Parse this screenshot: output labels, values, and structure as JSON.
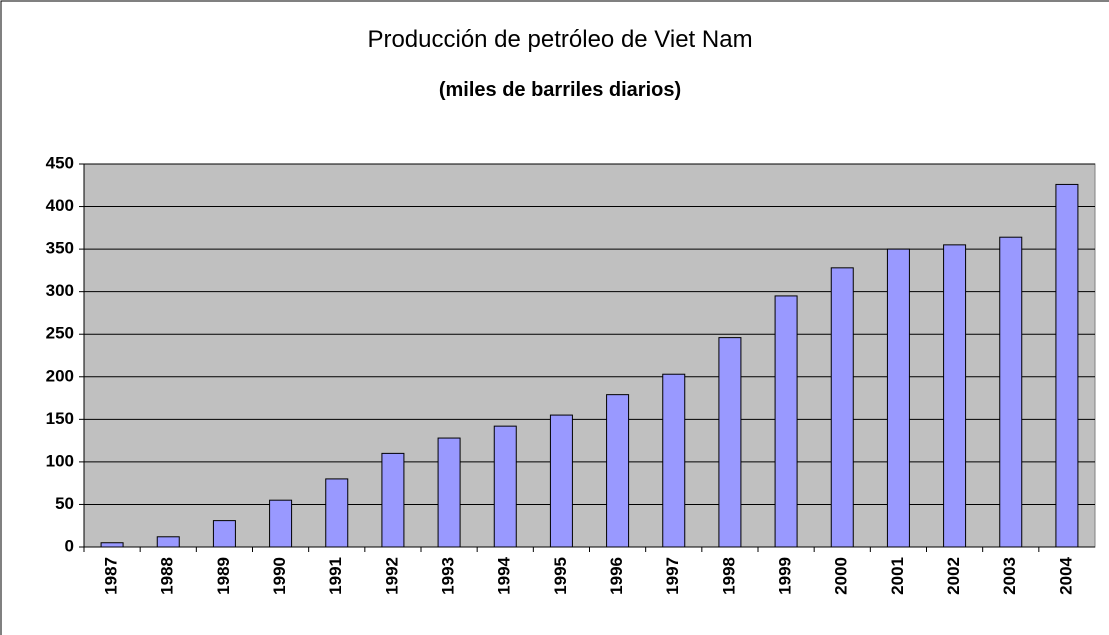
{
  "chart_data": {
    "type": "bar",
    "title": "Producción de petróleo de Viet Nam",
    "subtitle": "(miles de barriles diarios)",
    "categories": [
      "1987",
      "1988",
      "1989",
      "1990",
      "1991",
      "1992",
      "1993",
      "1994",
      "1995",
      "1996",
      "1997",
      "1998",
      "1999",
      "2000",
      "2001",
      "2002",
      "2003",
      "2004"
    ],
    "values": [
      5,
      12,
      31,
      55,
      80,
      110,
      128,
      142,
      155,
      179,
      203,
      246,
      295,
      328,
      350,
      355,
      364,
      426
    ],
    "color": "#9999ff",
    "ylim": [
      0,
      450
    ],
    "yticks": [
      0,
      50,
      100,
      150,
      200,
      250,
      300,
      350,
      400,
      450
    ],
    "grid": true
  }
}
